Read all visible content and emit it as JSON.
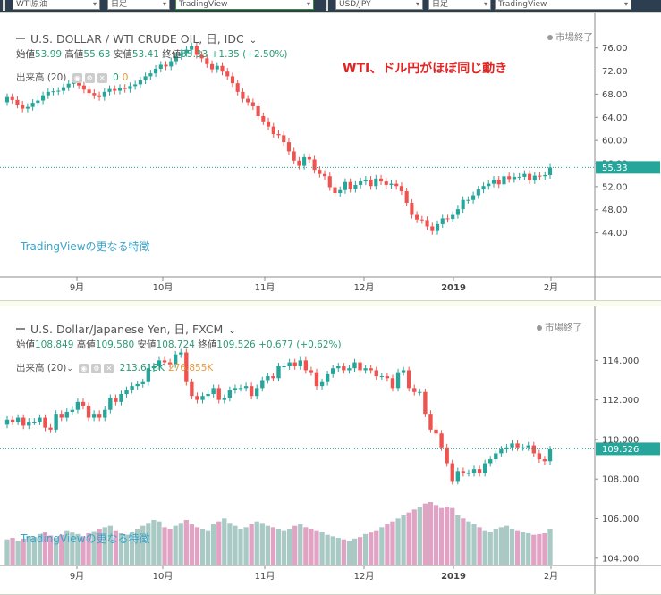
{
  "topbar": {
    "selects": [
      "WTI原油",
      "日足",
      "TradingView",
      "USD/JPY",
      "日足",
      "TradingView"
    ]
  },
  "colors": {
    "up": "#26a69a",
    "down": "#ef5350",
    "vol_up": "#a9c9c4",
    "vol_down": "#e0a3c4",
    "price_line": "#26a69a",
    "tag": "#26a69a"
  },
  "top": {
    "title": "U.S. DOLLAR / WTI CRUDE OIL, 日, IDC",
    "ohlc": {
      "open_label": "始値",
      "open": "53.99",
      "high_label": "高値",
      "high": "55.63",
      "low_label": "安値",
      "low": "53.41",
      "close_label": "終値",
      "close": "55.33",
      "change": "+1.35 (+2.50%)"
    },
    "volume": {
      "label": "出来高 (20)",
      "v1": "0",
      "v2": "0"
    },
    "market": "市場終了",
    "annotation": "WTI、ドル円がほぼ同じ動き",
    "feature": "TradingViewの更なる特徴",
    "price_tag": "55.33"
  },
  "bottom": {
    "title": "U.S. Dollar/Japanese Yen, 日, FXCM",
    "ohlc": {
      "open_label": "始値",
      "open": "108.849",
      "high_label": "高値",
      "high": "109.580",
      "low_label": "安値",
      "low": "108.724",
      "close_label": "終値",
      "close": "109.526",
      "change": "+0.677 (+0.62%)"
    },
    "volume": {
      "label": "出来高 (20)",
      "v1": "213.618K",
      "v2": "276.855K"
    },
    "market": "市場終了",
    "feature": "TradingViewの更なる特徴",
    "price_tag": "109.526"
  },
  "chart_data": [
    {
      "type": "candlestick",
      "title": "U.S. DOLLAR / WTI CRUDE OIL, 日, IDC",
      "x_labels": [
        "9月",
        "10月",
        "11月",
        "12月",
        "2019",
        "2月"
      ],
      "y_ticks": [
        "44.00",
        "48.00",
        "52.00",
        "56.00",
        "60.00",
        "64.00",
        "68.00",
        "72.00",
        "76.00"
      ],
      "ylim": [
        41,
        77.5
      ],
      "last_price": 55.33,
      "closes": [
        67.5,
        67.0,
        66.2,
        65.5,
        65.8,
        66.5,
        66.9,
        67.8,
        68.4,
        68.5,
        68.6,
        69.2,
        69.8,
        70.1,
        69.5,
        68.8,
        68.2,
        67.8,
        67.5,
        68.4,
        68.9,
        68.6,
        69.1,
        68.9,
        69.4,
        69.7,
        70.4,
        71.1,
        71.6,
        72.4,
        73.1,
        72.8,
        73.7,
        74.6,
        75.1,
        75.7,
        76.3,
        74.8,
        74.2,
        73.2,
        72.3,
        72.9,
        71.9,
        71.1,
        69.9,
        68.4,
        67.2,
        66.6,
        65.9,
        64.2,
        63.3,
        62.4,
        61.1,
        60.9,
        59.7,
        58.1,
        56.5,
        55.6,
        57.1,
        56.7,
        54.9,
        54.2,
        53.8,
        51.9,
        50.9,
        51.4,
        52.8,
        51.6,
        52.3,
        52.9,
        53.2,
        52.1,
        53.4,
        52.9,
        52.3,
        52.5,
        52.1,
        51.2,
        49.2,
        47.1,
        46.3,
        46.2,
        45.1,
        44.3,
        45.5,
        46.5,
        46.4,
        47.1,
        48.1,
        49.7,
        49.7,
        50.5,
        51.5,
        52.1,
        52.5,
        53.2,
        52.4,
        53.8,
        53.3,
        53.7,
        53.7,
        54.2,
        53.1,
        53.9,
        53.8,
        54.0,
        55.3
      ]
    },
    {
      "type": "candlestick",
      "title": "U.S. Dollar/Japanese Yen, 日, FXCM",
      "x_labels": [
        "9月",
        "10月",
        "11月",
        "12月",
        "2019",
        "2月"
      ],
      "y_ticks": [
        "104.000",
        "106.000",
        "108.000",
        "110.000",
        "112.000",
        "114.000"
      ],
      "ylim": [
        103.9,
        115.1
      ],
      "last_price": 109.526,
      "closes": [
        111.0,
        110.9,
        111.1,
        110.7,
        110.9,
        110.9,
        111.1,
        110.6,
        110.5,
        111.3,
        111.1,
        111.4,
        111.5,
        111.9,
        111.7,
        111.1,
        111.3,
        111.1,
        111.5,
        112.1,
        111.9,
        112.3,
        112.5,
        112.7,
        112.8,
        112.9,
        113.6,
        113.7,
        114.0,
        113.9,
        113.8,
        114.3,
        114.4,
        112.9,
        112.2,
        112.0,
        112.2,
        112.3,
        112.6,
        112.0,
        112.1,
        112.5,
        112.6,
        112.6,
        112.7,
        112.2,
        112.6,
        113.0,
        113.2,
        113.1,
        113.7,
        113.7,
        113.9,
        113.7,
        114.0,
        113.5,
        113.4,
        112.7,
        112.9,
        113.3,
        113.6,
        113.7,
        113.5,
        113.6,
        113.9,
        113.5,
        113.6,
        113.5,
        113.2,
        113.2,
        113.1,
        112.6,
        113.4,
        113.5,
        112.6,
        112.4,
        112.4,
        111.3,
        110.5,
        110.3,
        109.6,
        108.8,
        107.9,
        108.4,
        108.3,
        108.3,
        108.5,
        108.3,
        108.8,
        109.0,
        109.3,
        109.5,
        109.6,
        109.8,
        109.6,
        109.6,
        109.7,
        109.3,
        109.0,
        108.9,
        109.5
      ],
      "volumes_k": [
        170,
        180,
        160,
        175,
        190,
        185,
        205,
        220,
        195,
        180,
        200,
        230,
        215,
        205,
        190,
        210,
        225,
        240,
        250,
        260,
        230,
        210,
        200,
        220,
        240,
        260,
        280,
        300,
        290,
        250,
        240,
        260,
        280,
        300,
        270,
        250,
        240,
        230,
        270,
        290,
        310,
        280,
        260,
        240,
        250,
        270,
        290,
        280,
        260,
        250,
        240,
        230,
        240,
        260,
        270,
        250,
        240,
        230,
        220,
        200,
        190,
        180,
        170,
        160,
        175,
        185,
        205,
        215,
        230,
        250,
        270,
        290,
        310,
        330,
        350,
        370,
        390,
        410,
        420,
        400,
        380,
        390,
        380,
        330,
        310,
        290,
        270,
        250,
        230,
        220,
        240,
        250,
        260,
        240,
        230,
        220,
        210,
        200,
        205,
        210,
        240
      ]
    }
  ]
}
